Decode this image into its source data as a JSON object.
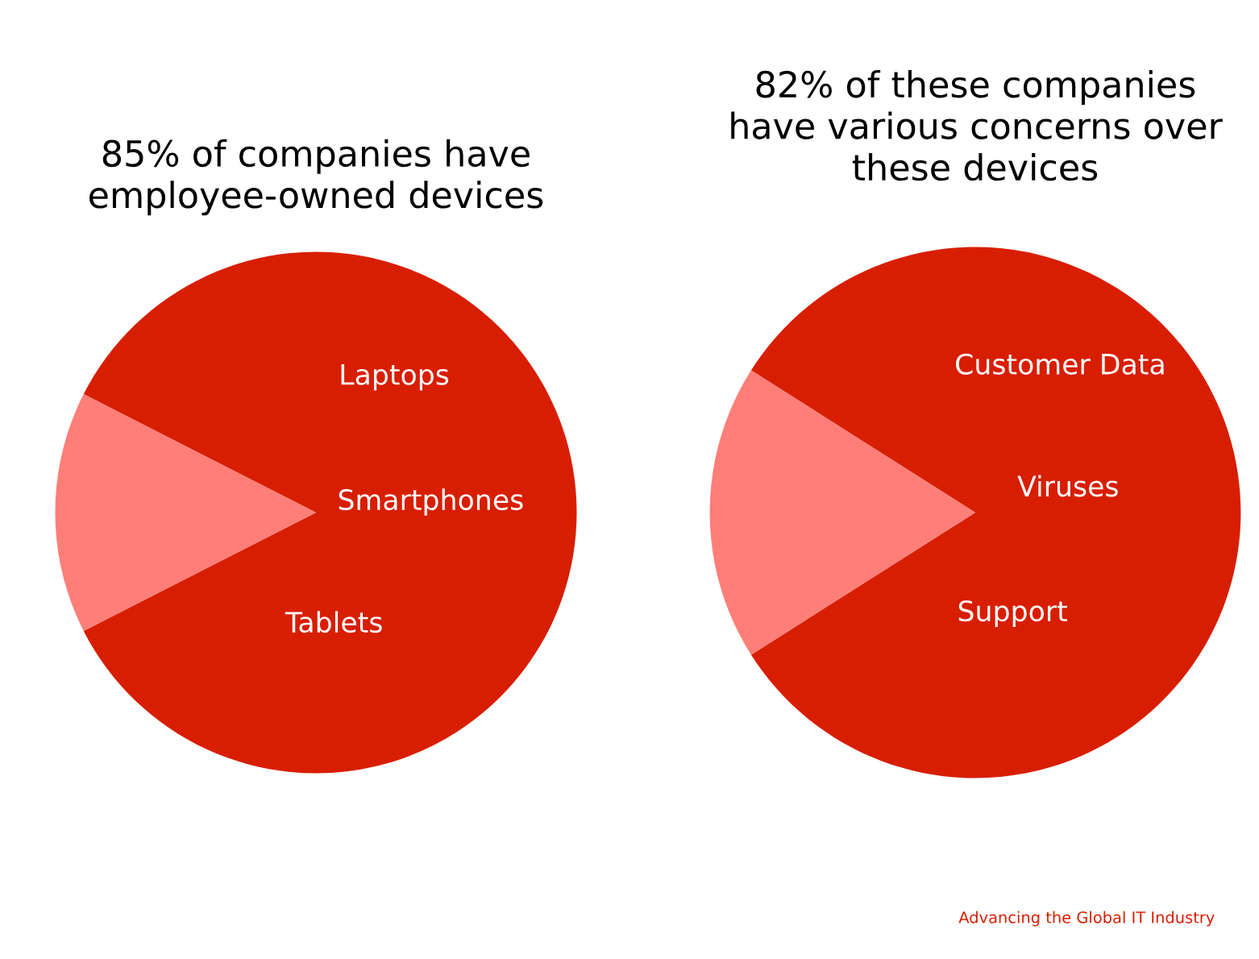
{
  "chart_data": [
    {
      "type": "pie",
      "title": "85% of companies have\nemployee-owned devices",
      "categories": [
        null,
        null
      ],
      "values": [
        85,
        15
      ],
      "colors": [
        "#d81e00",
        "#ff7e78"
      ],
      "annotations": [
        "Laptops",
        "Smartphones",
        "Tablets"
      ]
    },
    {
      "type": "pie",
      "title": "82% of these companies\nhave various concerns over\nthese devices",
      "categories": [
        null,
        null
      ],
      "values": [
        82,
        18
      ],
      "colors": [
        "#d81e00",
        "#ff7e78"
      ],
      "annotations": [
        "Customer Data",
        "Viruses",
        "Support",
        "Advancing the Global IT Industry"
      ]
    }
  ]
}
